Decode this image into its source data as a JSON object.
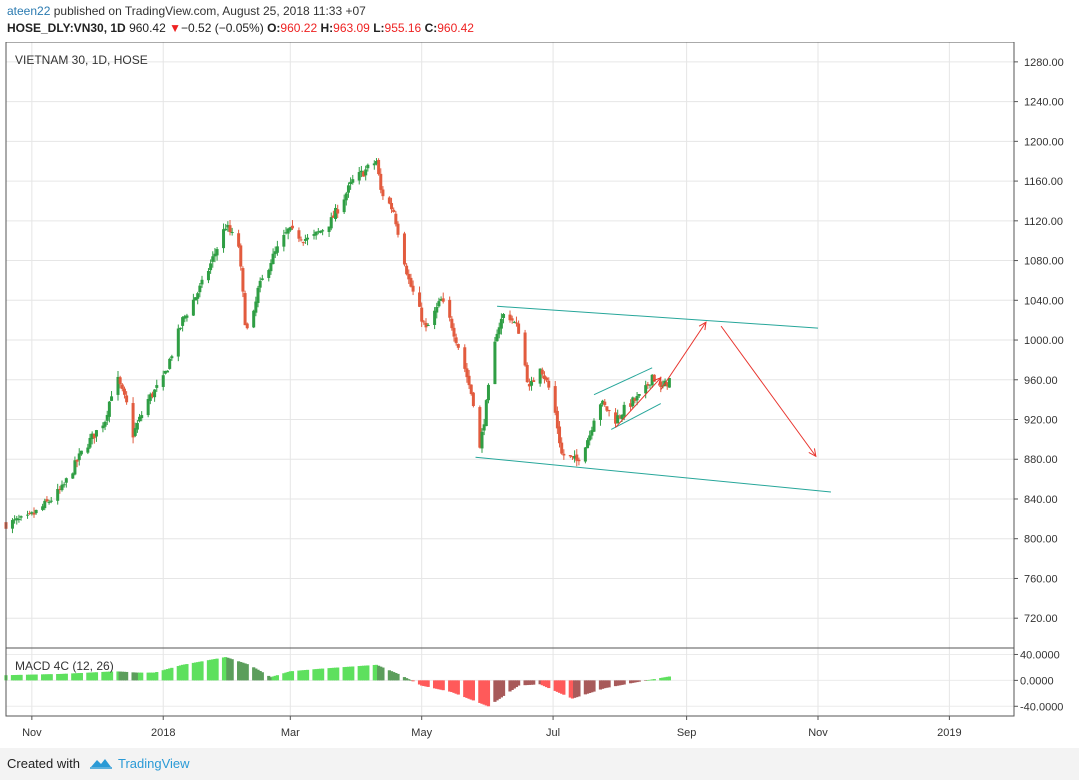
{
  "header": {
    "user": "ateen22",
    "published_text": " published on TradingView.com, August 25, 2018 11:33 +07",
    "symbol": "HOSE_DLY:VN30, 1D",
    "last": "960.42",
    "change": "−0.52 (−0.05%)",
    "o_label": "O:",
    "o_value": "960.22",
    "h_label": "H:",
    "h_value": "963.09",
    "l_label": "L:",
    "l_value": "955.16",
    "c_label": "C:",
    "c_value": "960.42"
  },
  "chart_title": "VIETNAM 30, 1D, HOSE",
  "macd_label": "MACD 4C (12, 26)",
  "footer": {
    "created_with": "Created with",
    "brand": "TradingView"
  },
  "colors": {
    "up": "#2f9e44",
    "down": "#e25b3e",
    "channel": "#26a69a",
    "arrow": "#e8352e",
    "macd_up_strong": "#5ee05e",
    "macd_up_weak": "#5c9e5c",
    "macd_down_strong": "#ff5a5a",
    "macd_down_weak": "#a85a5a"
  },
  "chart_data": {
    "type": "candlestick",
    "price_axis": {
      "min": 690,
      "max": 1300,
      "ticks": [
        1280,
        1240,
        1200,
        1160,
        1120,
        1080,
        1040,
        1000,
        960,
        920,
        880,
        840,
        800,
        760,
        720
      ],
      "tick_labels": [
        "1280.00",
        "1240.00",
        "1200.00",
        "1160.00",
        "1120.00",
        "1080.00",
        "1040.00",
        "1000.00",
        "960.00",
        "920.00",
        "880.00",
        "840.00",
        "800.00",
        "760.00",
        "720.00"
      ]
    },
    "time_axis": {
      "start": "2017-10-20",
      "end": "2019-01-31",
      "labels": [
        {
          "date": "2017-11-01",
          "text": "Nov"
        },
        {
          "date": "2018-01-01",
          "text": "2018"
        },
        {
          "date": "2018-03-01",
          "text": "Mar"
        },
        {
          "date": "2018-05-01",
          "text": "May"
        },
        {
          "date": "2018-07-01",
          "text": "Jul"
        },
        {
          "date": "2018-09-01",
          "text": "Sep"
        },
        {
          "date": "2018-11-01",
          "text": "Nov"
        },
        {
          "date": "2019-01-01",
          "text": "2019"
        }
      ]
    },
    "price_path": [
      {
        "date": "2017-10-20",
        "close": 815
      },
      {
        "date": "2017-10-30",
        "close": 820
      },
      {
        "date": "2017-11-05",
        "close": 830
      },
      {
        "date": "2017-11-15",
        "close": 850
      },
      {
        "date": "2017-11-25",
        "close": 890
      },
      {
        "date": "2017-12-05",
        "close": 920
      },
      {
        "date": "2017-12-10",
        "close": 965
      },
      {
        "date": "2017-12-15",
        "close": 935
      },
      {
        "date": "2017-12-18",
        "close": 905
      },
      {
        "date": "2017-12-25",
        "close": 940
      },
      {
        "date": "2018-01-01",
        "close": 960
      },
      {
        "date": "2018-01-10",
        "close": 1020
      },
      {
        "date": "2018-01-20",
        "close": 1060
      },
      {
        "date": "2018-01-30",
        "close": 1115
      },
      {
        "date": "2018-02-05",
        "close": 1095
      },
      {
        "date": "2018-02-08",
        "close": 1020
      },
      {
        "date": "2018-02-10",
        "close": 1000
      },
      {
        "date": "2018-02-14",
        "close": 1050
      },
      {
        "date": "2018-02-20",
        "close": 1080
      },
      {
        "date": "2018-02-28",
        "close": 1110
      },
      {
        "date": "2018-03-10",
        "close": 1100
      },
      {
        "date": "2018-03-20",
        "close": 1120
      },
      {
        "date": "2018-03-30",
        "close": 1160
      },
      {
        "date": "2018-04-10",
        "close": 1180
      },
      {
        "date": "2018-04-12",
        "close": 1150
      },
      {
        "date": "2018-04-18",
        "close": 1130
      },
      {
        "date": "2018-04-25",
        "close": 1060
      },
      {
        "date": "2018-05-03",
        "close": 1010
      },
      {
        "date": "2018-05-10",
        "close": 1040
      },
      {
        "date": "2018-05-15",
        "close": 1015
      },
      {
        "date": "2018-05-20",
        "close": 980
      },
      {
        "date": "2018-05-26",
        "close": 930
      },
      {
        "date": "2018-05-28",
        "close": 890
      },
      {
        "date": "2018-06-01",
        "close": 950
      },
      {
        "date": "2018-06-05",
        "close": 1010
      },
      {
        "date": "2018-06-09",
        "close": 1030
      },
      {
        "date": "2018-06-15",
        "close": 1010
      },
      {
        "date": "2018-06-20",
        "close": 950
      },
      {
        "date": "2018-06-25",
        "close": 975
      },
      {
        "date": "2018-07-01",
        "close": 940
      },
      {
        "date": "2018-07-05",
        "close": 885
      },
      {
        "date": "2018-07-12",
        "close": 878
      },
      {
        "date": "2018-07-18",
        "close": 905
      },
      {
        "date": "2018-07-22",
        "close": 940
      },
      {
        "date": "2018-07-30",
        "close": 920
      },
      {
        "date": "2018-08-05",
        "close": 935
      },
      {
        "date": "2018-08-12",
        "close": 945
      },
      {
        "date": "2018-08-16",
        "close": 965
      },
      {
        "date": "2018-08-20",
        "close": 950
      },
      {
        "date": "2018-08-24",
        "close": 960
      }
    ],
    "macd": {
      "axis": {
        "min": -55,
        "max": 50,
        "ticks": [
          40,
          0,
          -40
        ],
        "tick_labels": [
          "40.0000",
          "0.0000",
          "-40.0000"
        ]
      },
      "path": [
        {
          "date": "2017-10-20",
          "value": 8
        },
        {
          "date": "2017-11-15",
          "value": 10
        },
        {
          "date": "2017-12-10",
          "value": 14
        },
        {
          "date": "2017-12-20",
          "value": 12
        },
        {
          "date": "2017-12-28",
          "value": 12
        },
        {
          "date": "2018-01-10",
          "value": 24
        },
        {
          "date": "2018-01-30",
          "value": 36
        },
        {
          "date": "2018-02-10",
          "value": 24
        },
        {
          "date": "2018-02-20",
          "value": 5
        },
        {
          "date": "2018-03-01",
          "value": 14
        },
        {
          "date": "2018-03-15",
          "value": 18
        },
        {
          "date": "2018-04-10",
          "value": 24
        },
        {
          "date": "2018-04-20",
          "value": 10
        },
        {
          "date": "2018-05-01",
          "value": -8
        },
        {
          "date": "2018-05-15",
          "value": -18
        },
        {
          "date": "2018-06-01",
          "value": -40
        },
        {
          "date": "2018-06-15",
          "value": -8
        },
        {
          "date": "2018-06-25",
          "value": -6
        },
        {
          "date": "2018-07-10",
          "value": -28
        },
        {
          "date": "2018-07-25",
          "value": -12
        },
        {
          "date": "2018-08-10",
          "value": -2
        },
        {
          "date": "2018-08-24",
          "value": 6
        }
      ]
    },
    "drawings": {
      "channel_upper": [
        {
          "date": "2018-06-05",
          "price": 1034
        },
        {
          "date": "2018-11-01",
          "price": 1012
        }
      ],
      "channel_lower": [
        {
          "date": "2018-05-26",
          "price": 882
        },
        {
          "date": "2018-11-07",
          "price": 847
        }
      ],
      "small_channel_upper": [
        {
          "date": "2018-07-20",
          "price": 945
        },
        {
          "date": "2018-08-16",
          "price": 972
        }
      ],
      "small_channel_lower": [
        {
          "date": "2018-07-28",
          "price": 910
        },
        {
          "date": "2018-08-20",
          "price": 936
        }
      ],
      "arrows": [
        [
          {
            "date": "2018-07-30",
            "price": 912
          },
          {
            "date": "2018-08-20",
            "price": 962
          }
        ],
        [
          {
            "date": "2018-08-20",
            "price": 950
          },
          {
            "date": "2018-09-10",
            "price": 1018
          }
        ],
        [
          {
            "date": "2018-09-17",
            "price": 1014
          },
          {
            "date": "2018-10-31",
            "price": 883
          }
        ]
      ]
    }
  }
}
